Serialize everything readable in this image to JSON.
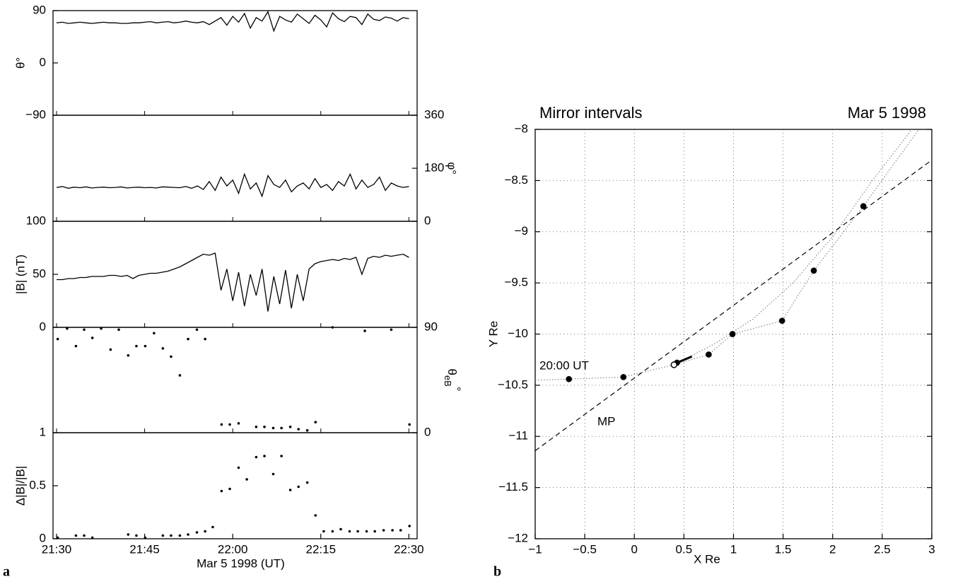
{
  "chart_data": [
    {
      "type": "line",
      "ylabel": "θ°",
      "y_side": "left",
      "color": "#000000",
      "x": [
        1290,
        1291,
        1292,
        1293,
        1294,
        1295,
        1296,
        1297,
        1298,
        1299,
        1300,
        1301,
        1302,
        1303,
        1304,
        1305,
        1306,
        1307,
        1308,
        1309,
        1310,
        1311,
        1312,
        1313,
        1314,
        1315,
        1316,
        1317,
        1318,
        1319,
        1320,
        1321,
        1322,
        1323,
        1324,
        1325,
        1326,
        1327,
        1328,
        1329,
        1330,
        1331,
        1332,
        1333,
        1334,
        1335,
        1336,
        1337,
        1338,
        1339,
        1340,
        1341,
        1342,
        1343,
        1344,
        1345,
        1346,
        1347,
        1348,
        1349,
        1350
      ],
      "values": [
        69,
        70,
        68,
        69,
        70,
        69,
        68,
        69,
        70,
        69,
        69,
        68,
        68,
        69,
        69,
        70,
        71,
        69,
        70,
        71,
        69,
        70,
        72,
        70,
        69,
        71,
        66,
        72,
        78,
        65,
        80,
        70,
        85,
        60,
        78,
        72,
        88,
        55,
        80,
        74,
        70,
        84,
        76,
        68,
        82,
        74,
        62,
        86,
        76,
        71,
        80,
        78,
        66,
        84,
        75,
        73,
        79,
        77,
        72,
        78,
        76
      ],
      "xlim": [
        1289.4,
        1351.4
      ],
      "ylim": [
        -90,
        90
      ],
      "yticks": [
        {
          "value": -90,
          "label": "−90"
        },
        0,
        90
      ]
    },
    {
      "type": "line",
      "ylabel": "φ°",
      "y_side": "right",
      "color": "#000000",
      "x": [
        1290,
        1291,
        1292,
        1293,
        1294,
        1295,
        1296,
        1297,
        1298,
        1299,
        1300,
        1301,
        1302,
        1303,
        1304,
        1305,
        1306,
        1307,
        1308,
        1309,
        1310,
        1311,
        1312,
        1313,
        1314,
        1315,
        1316,
        1317,
        1318,
        1319,
        1320,
        1321,
        1322,
        1323,
        1324,
        1325,
        1326,
        1327,
        1328,
        1329,
        1330,
        1331,
        1332,
        1333,
        1334,
        1335,
        1336,
        1337,
        1338,
        1339,
        1340,
        1341,
        1342,
        1343,
        1344,
        1345,
        1346,
        1347,
        1348,
        1349,
        1350
      ],
      "values": [
        115,
        118,
        112,
        116,
        114,
        117,
        113,
        115,
        116,
        114,
        115,
        117,
        113,
        115,
        116,
        114,
        115,
        113,
        117,
        116,
        115,
        114,
        118,
        112,
        120,
        108,
        135,
        105,
        150,
        120,
        140,
        95,
        160,
        110,
        130,
        85,
        155,
        125,
        115,
        140,
        100,
        120,
        130,
        110,
        145,
        115,
        125,
        105,
        135,
        120,
        160,
        110,
        140,
        115,
        125,
        150,
        105,
        130,
        120,
        115,
        118
      ],
      "xlim": [
        1289.4,
        1351.4
      ],
      "ylim": [
        0,
        360
      ],
      "yticks": [
        0,
        180,
        360
      ]
    },
    {
      "type": "line",
      "ylabel": "|B| (nT)",
      "y_side": "left",
      "color": "#000000",
      "x": [
        1290,
        1291,
        1292,
        1293,
        1294,
        1295,
        1296,
        1297,
        1298,
        1299,
        1300,
        1301,
        1302,
        1303,
        1304,
        1305,
        1306,
        1307,
        1308,
        1309,
        1310,
        1311,
        1312,
        1313,
        1314,
        1315,
        1316,
        1317,
        1318,
        1319,
        1320,
        1321,
        1322,
        1323,
        1324,
        1325,
        1326,
        1327,
        1328,
        1329,
        1330,
        1331,
        1332,
        1333,
        1334,
        1335,
        1336,
        1337,
        1338,
        1339,
        1340,
        1341,
        1342,
        1343,
        1344,
        1345,
        1346,
        1347,
        1348,
        1349,
        1350
      ],
      "values": [
        45,
        45,
        46,
        46,
        47,
        47,
        48,
        48,
        48,
        49,
        49,
        48,
        49,
        46,
        49,
        50,
        51,
        51,
        52,
        53,
        55,
        57,
        60,
        63,
        66,
        69,
        68,
        70,
        35,
        55,
        25,
        52,
        20,
        50,
        30,
        55,
        15,
        48,
        22,
        54,
        18,
        50,
        25,
        55,
        60,
        62,
        63,
        64,
        63,
        65,
        64,
        66,
        50,
        65,
        67,
        66,
        68,
        67,
        68,
        69,
        66
      ],
      "xlim": [
        1289.4,
        1351.4
      ],
      "ylim": [
        0,
        100
      ],
      "yticks": [
        0,
        50,
        100
      ]
    },
    {
      "type": "scatter",
      "ylabel": {
        "symbol": "θ",
        "subscript": "eB",
        "suffix": "°"
      },
      "y_side": "right",
      "color": "#000000",
      "x": [
        1290.2,
        1291.8,
        1293.3,
        1294.7,
        1296.1,
        1297.6,
        1299.2,
        1300.6,
        1302.2,
        1303.6,
        1305.1,
        1306.6,
        1308.1,
        1309.5,
        1311.0,
        1312.4,
        1313.9,
        1315.3,
        1318.1,
        1319.5,
        1321.0,
        1324.0,
        1325.4,
        1326.9,
        1328.3,
        1329.8,
        1331.2,
        1332.7,
        1334.1,
        1337.0,
        1342.5,
        1347.0,
        1350.1
      ],
      "values": [
        80,
        89,
        74,
        88,
        81,
        89,
        71,
        88,
        66,
        74,
        74,
        85,
        72,
        65,
        49,
        80,
        88,
        80,
        7,
        7,
        8,
        5,
        5,
        4,
        4,
        5,
        3,
        2,
        9,
        90,
        87,
        88,
        7
      ],
      "xlim": [
        1289.4,
        1351.4
      ],
      "ylim": [
        0,
        90
      ],
      "yticks": [
        0,
        90
      ]
    },
    {
      "type": "scatter",
      "ylabel": "Δ|B|/|B|",
      "y_side": "left",
      "color": "#000000",
      "panel_label": "a",
      "xlabel": "Mar 5 1998 (UT)",
      "x": [
        1290.2,
        1293.3,
        1294.7,
        1296.1,
        1302.2,
        1303.6,
        1305.1,
        1308.1,
        1309.5,
        1311.0,
        1312.4,
        1313.9,
        1315.3,
        1316.6,
        1318.1,
        1319.5,
        1321.0,
        1322.4,
        1324.0,
        1325.4,
        1326.9,
        1328.3,
        1329.8,
        1331.2,
        1332.7,
        1334.1,
        1335.5,
        1337.0,
        1338.4,
        1339.9,
        1341.3,
        1342.8,
        1344.2,
        1345.7,
        1347.2,
        1348.6,
        1350.1
      ],
      "values": [
        0.01,
        0.03,
        0.03,
        0.01,
        0.04,
        0.03,
        0.01,
        0.03,
        0.03,
        0.03,
        0.04,
        0.06,
        0.07,
        0.11,
        0.45,
        0.47,
        0.67,
        0.56,
        0.77,
        0.78,
        0.61,
        0.78,
        0.46,
        0.49,
        0.53,
        0.22,
        0.07,
        0.07,
        0.09,
        0.07,
        0.07,
        0.07,
        0.07,
        0.08,
        0.08,
        0.08,
        0.12
      ],
      "xlim": [
        1289.4,
        1351.4
      ],
      "ylim": [
        0,
        1
      ],
      "yticks": [
        0,
        0.5,
        1
      ],
      "xticks": [
        {
          "value": 1290,
          "label": "21:30"
        },
        {
          "value": 1305,
          "label": "21:45"
        },
        {
          "value": 1320,
          "label": "22:00"
        },
        {
          "value": 1335,
          "label": "22:15"
        },
        {
          "value": 1350,
          "label": "22:30"
        }
      ]
    },
    {
      "type": "line",
      "title": "Mirror intervals",
      "subtitle": "Mar 5 1998",
      "xlabel": "X Re",
      "ylabel": "Y Re",
      "panel_label": "b",
      "xlim": [
        -1,
        3
      ],
      "ylim": [
        -12,
        -8
      ],
      "grid": true,
      "xticks": [
        {
          "value": -1,
          "label": "−1"
        },
        {
          "value": -0.5,
          "label": "−0.5"
        },
        0,
        0.5,
        1,
        1.5,
        2,
        2.5,
        3
      ],
      "yticks": [
        {
          "value": -12,
          "label": "−12"
        },
        {
          "value": -11.5,
          "label": "−11.5"
        },
        {
          "value": -11,
          "label": "−11"
        },
        {
          "value": -10.5,
          "label": "−10.5"
        },
        {
          "value": -10,
          "label": "−10"
        },
        {
          "value": -9.5,
          "label": "−9.5"
        },
        {
          "value": -9,
          "label": "−9"
        },
        {
          "value": -8.5,
          "label": "−8.5"
        },
        {
          "value": -8,
          "label": "−8"
        }
      ],
      "series": [
        {
          "style": "dotted",
          "color": "#888888",
          "x": [
            -1,
            -0.66,
            -0.11,
            0.4,
            0.75,
            0.99,
            1.49,
            1.81,
            2.31,
            2.87
          ],
          "y": [
            -10.45,
            -10.44,
            -10.42,
            -10.3,
            -10.2,
            -10.0,
            -9.87,
            -9.38,
            -8.75,
            -8.0
          ]
        },
        {
          "style": "dotted",
          "color": "#888888",
          "x": [
            0.4,
            0.8,
            1.2,
            1.6,
            2.0,
            2.4,
            2.8
          ],
          "y": [
            -10.3,
            -10.1,
            -9.85,
            -9.5,
            -9.05,
            -8.5,
            -8.0
          ]
        },
        {
          "style": "dashed",
          "color": "#000000",
          "x": [
            -1,
            3
          ],
          "y": [
            -11.14,
            -8.3
          ]
        },
        {
          "style": "thick",
          "color": "#000000",
          "x": [
            0.43,
            0.58
          ],
          "y": [
            -10.28,
            -10.22
          ]
        },
        {
          "style": "markers",
          "color": "#000000",
          "x": [
            -0.66,
            -0.11,
            0.43,
            0.75,
            0.99,
            1.49,
            1.81,
            2.31
          ],
          "y": [
            -10.44,
            -10.42,
            -10.28,
            -10.2,
            -10.0,
            -9.87,
            -9.38,
            -8.75
          ]
        },
        {
          "style": "open-marker",
          "color": "#000000",
          "x": [
            0.4
          ],
          "y": [
            -10.3
          ]
        }
      ],
      "annotations": [
        "20:00 UT",
        "MP"
      ]
    }
  ]
}
